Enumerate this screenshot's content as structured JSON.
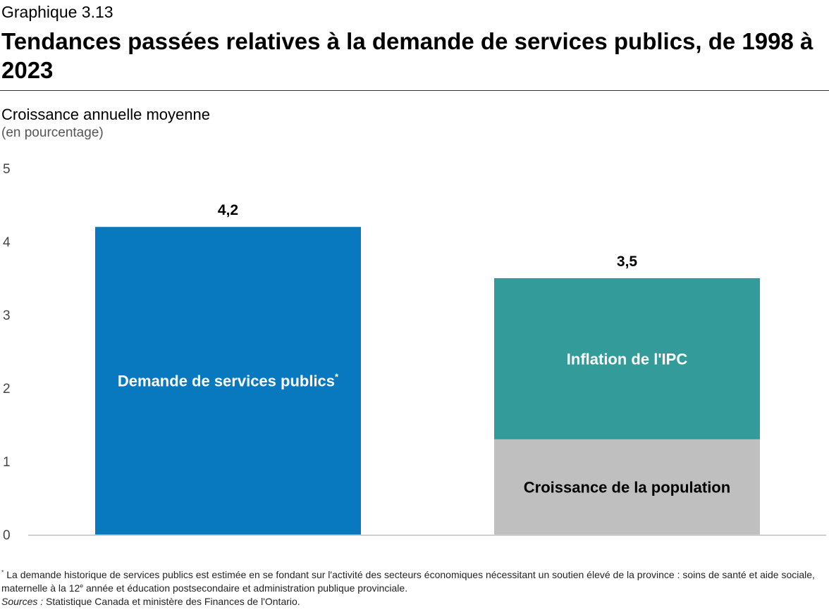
{
  "header": {
    "kicker": "Graphique 3.13",
    "title": "Tendances passées relatives à la demande de services publics, de 1998 à 2023",
    "ylabel": "Croissance annuelle moyenne",
    "yunit": "(en pourcentage)"
  },
  "chart_data": {
    "type": "bar",
    "stacked": true,
    "ylim": [
      0,
      5
    ],
    "yticks": [
      "0",
      "1",
      "2",
      "3",
      "4",
      "5"
    ],
    "grid": false,
    "bars": [
      {
        "total_label": "4,2",
        "segments": [
          {
            "name": "Demande de services publics",
            "note_mark": "*",
            "value": 4.2,
            "color": "#0979bf",
            "text_color": "#ffffff"
          }
        ]
      },
      {
        "total_label": "3,5",
        "segments": [
          {
            "name": "Croissance de la population",
            "note_mark": "",
            "value": 1.3,
            "color": "#bfbfbf",
            "text_color": "#000000"
          },
          {
            "name": "Inflation de l'IPC",
            "note_mark": "",
            "value": 2.2,
            "color": "#339b99",
            "text_color": "#ffffff"
          }
        ]
      }
    ]
  },
  "footnote": {
    "mark": "*",
    "note": " La demande historique de services publics est estimée en se fondant sur l'activité des secteurs économiques nécessitant un soutien élevé de la province : soins de santé et aide sociale, maternelle à la 12",
    "note_sup": "e",
    "note_end": " année et éducation postsecondaire et administration publique provinciale.",
    "sources_label": "Sources :",
    "sources_text": " Statistique Canada et ministère des Finances de l'Ontario."
  }
}
